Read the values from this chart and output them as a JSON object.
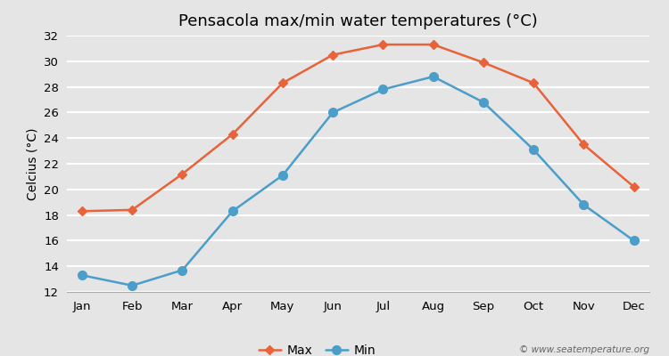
{
  "title": "Pensacola max/min water temperatures (°C)",
  "ylabel": "Celcius (°C)",
  "months": [
    "Jan",
    "Feb",
    "Mar",
    "Apr",
    "May",
    "Jun",
    "Jul",
    "Aug",
    "Sep",
    "Oct",
    "Nov",
    "Dec"
  ],
  "max_values": [
    18.3,
    18.4,
    21.2,
    24.3,
    28.3,
    30.5,
    31.3,
    31.3,
    29.9,
    28.3,
    23.5,
    20.2
  ],
  "min_values": [
    13.3,
    12.5,
    13.7,
    18.3,
    21.1,
    26.0,
    27.8,
    28.8,
    26.8,
    23.1,
    18.8,
    16.0
  ],
  "max_color": "#e8623a",
  "min_color": "#4a9ec9",
  "background_color": "#e5e5e5",
  "plot_bg_color": "#e5e5e5",
  "grid_color": "#ffffff",
  "ylim": [
    12,
    32
  ],
  "yticks": [
    12,
    14,
    16,
    18,
    20,
    22,
    24,
    26,
    28,
    30,
    32
  ],
  "legend_labels": [
    "Max",
    "Min"
  ],
  "watermark": "© www.seatemperature.org",
  "title_fontsize": 13,
  "axis_fontsize": 10,
  "tick_fontsize": 9.5,
  "legend_fontsize": 10,
  "max_marker": "D",
  "min_marker": "o",
  "max_marker_size": 5,
  "min_marker_size": 7,
  "line_width": 1.8
}
